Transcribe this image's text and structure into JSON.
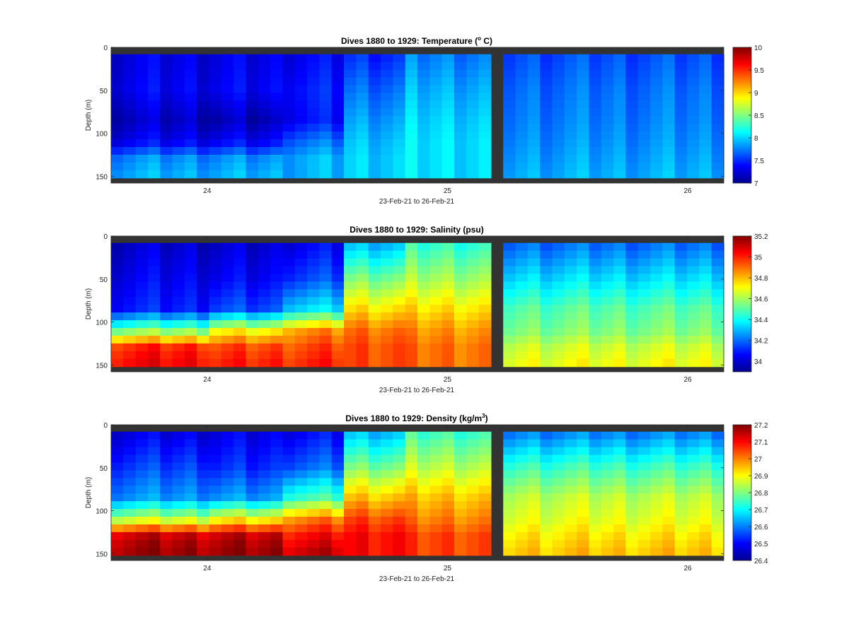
{
  "chart_data": [
    {
      "type": "heatmap",
      "title_prefix": "Dives 1880 to 1929: Temperature (",
      "title_sup": "o",
      "title_suffix": " C)",
      "xlabel": "23-Feb-21 to 26-Feb-21",
      "ylabel": "Depth (m)",
      "xlim": [
        23.6,
        26.15
      ],
      "ylim": [
        158,
        0
      ],
      "xticks": [
        24,
        25,
        26
      ],
      "yticks": [
        0,
        50,
        100,
        150
      ],
      "colorbar": {
        "range": [
          7,
          10
        ],
        "ticks": [
          7,
          7.5,
          8,
          8.5,
          9,
          9.5,
          10
        ],
        "tick_labels": [
          "7",
          "7.5",
          "8",
          "8.5",
          "9",
          "9.5",
          "10"
        ]
      },
      "profiles": {
        "x_start": 23.6,
        "x_end": 26.15,
        "dive_count": 50,
        "depths_m": [
          10,
          50,
          85,
          110,
          130,
          150
        ],
        "values_by_segment": [
          {
            "x_range": [
              23.6,
              24.0
            ],
            "values": [
              7.3,
              7.35,
              7.2,
              7.35,
              7.8,
              7.9
            ]
          },
          {
            "x_range": [
              24.0,
              24.3
            ],
            "values": [
              7.3,
              7.35,
              7.15,
              7.35,
              7.8,
              7.9
            ]
          },
          {
            "x_range": [
              24.3,
              24.55
            ],
            "values": [
              7.35,
              7.45,
              7.4,
              7.7,
              7.9,
              7.9
            ]
          },
          {
            "x_range": [
              24.55,
              24.8
            ],
            "values": [
              7.5,
              7.7,
              7.85,
              7.95,
              8.0,
              8.0
            ]
          },
          {
            "x_range": [
              24.8,
              25.2
            ],
            "values": [
              7.75,
              7.9,
              8.0,
              8.05,
              8.05,
              8.05
            ]
          },
          {
            "x_range": [
              25.25,
              26.15
            ],
            "values": [
              7.6,
              7.7,
              7.75,
              7.8,
              7.85,
              7.9
            ]
          }
        ]
      }
    },
    {
      "type": "heatmap",
      "title": "Dives 1880 to 1929: Salinity (psu)",
      "xlabel": "23-Feb-21 to 26-Feb-21",
      "ylabel": "Depth (m)",
      "xlim": [
        23.6,
        26.15
      ],
      "ylim": [
        158,
        0
      ],
      "xticks": [
        24,
        25,
        26
      ],
      "yticks": [
        0,
        50,
        100,
        150
      ],
      "colorbar": {
        "range": [
          33.9,
          35.2
        ],
        "ticks": [
          34,
          34.2,
          34.4,
          34.6,
          34.8,
          35,
          35.2
        ],
        "tick_labels": [
          "34",
          "34.2",
          "34.4",
          "34.6",
          "34.8",
          "35",
          "35.2"
        ]
      },
      "profiles": {
        "x_start": 23.6,
        "x_end": 26.15,
        "dive_count": 50,
        "depths_m": [
          10,
          50,
          85,
          110,
          130,
          150
        ],
        "values_by_segment": [
          {
            "x_range": [
              23.6,
              24.0
            ],
            "values": [
              34.0,
              34.05,
              34.1,
              34.55,
              35.0,
              35.05
            ]
          },
          {
            "x_range": [
              24.0,
              24.3
            ],
            "values": [
              34.0,
              34.05,
              34.15,
              34.7,
              34.95,
              35.0
            ]
          },
          {
            "x_range": [
              24.3,
              24.55
            ],
            "values": [
              34.05,
              34.15,
              34.35,
              34.85,
              34.95,
              35.0
            ]
          },
          {
            "x_range": [
              24.55,
              24.8
            ],
            "values": [
              34.3,
              34.55,
              34.75,
              34.9,
              34.95,
              34.95
            ]
          },
          {
            "x_range": [
              24.8,
              25.2
            ],
            "values": [
              34.45,
              34.6,
              34.75,
              34.85,
              34.9,
              34.9
            ]
          },
          {
            "x_range": [
              25.25,
              26.15
            ],
            "values": [
              34.2,
              34.35,
              34.5,
              34.55,
              34.65,
              34.7
            ]
          }
        ]
      }
    },
    {
      "type": "heatmap",
      "title_prefix": "Dives 1880 to 1929: Density (kg/m",
      "title_sup": "3",
      "title_suffix": ")",
      "xlabel": "23-Feb-21 to 26-Feb-21",
      "ylabel": "Depth (m)",
      "xlim": [
        23.6,
        26.15
      ],
      "ylim": [
        158,
        0
      ],
      "xticks": [
        24,
        25,
        26
      ],
      "yticks": [
        0,
        50,
        100,
        150
      ],
      "colorbar": {
        "range": [
          26.4,
          27.2
        ],
        "ticks": [
          26.4,
          26.5,
          26.6,
          26.7,
          26.8,
          26.9,
          27,
          27.1,
          27.2
        ],
        "tick_labels": [
          "26.4",
          "26.5",
          "26.6",
          "26.7",
          "26.8",
          "26.9",
          "27",
          "27.1",
          "27.2"
        ]
      },
      "profiles": {
        "x_start": 23.6,
        "x_end": 26.15,
        "dive_count": 50,
        "depths_m": [
          10,
          50,
          85,
          110,
          130,
          150
        ],
        "values_by_segment": [
          {
            "x_range": [
              23.6,
              24.0
            ],
            "values": [
              26.48,
              26.55,
              26.62,
              26.85,
              27.15,
              27.18
            ]
          },
          {
            "x_range": [
              24.0,
              24.3
            ],
            "values": [
              26.48,
              26.53,
              26.62,
              26.9,
              27.15,
              27.18
            ]
          },
          {
            "x_range": [
              24.3,
              24.55
            ],
            "values": [
              26.5,
              26.58,
              26.75,
              27.0,
              27.1,
              27.15
            ]
          },
          {
            "x_range": [
              24.55,
              24.8
            ],
            "values": [
              26.65,
              26.8,
              26.95,
              27.05,
              27.1,
              27.1
            ]
          },
          {
            "x_range": [
              24.8,
              25.2
            ],
            "values": [
              26.75,
              26.85,
              26.95,
              27.0,
              27.05,
              27.05
            ]
          },
          {
            "x_range": [
              25.25,
              26.15
            ],
            "values": [
              26.6,
              26.75,
              26.85,
              26.88,
              26.92,
              26.95
            ]
          }
        ]
      }
    }
  ]
}
